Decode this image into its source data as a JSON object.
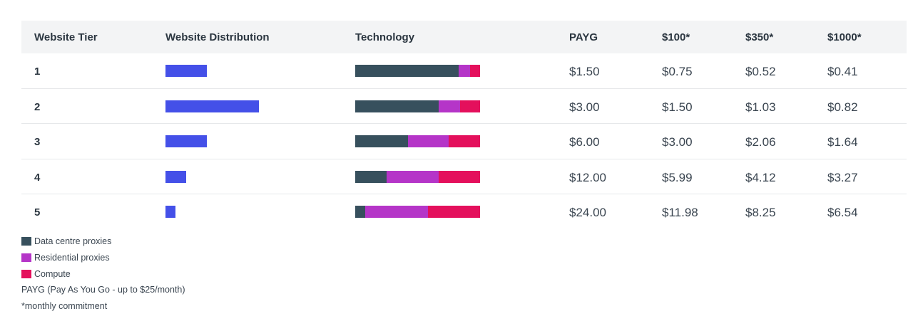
{
  "header": {
    "tier": "Website Tier",
    "distribution": "Website Distribution",
    "technology": "Technology",
    "payg": "PAYG",
    "p100": "$100*",
    "p350": "$350*",
    "p1000": "$1000*"
  },
  "colors": {
    "distribution": "#4450e8",
    "datacentre": "#37505d",
    "residential": "#b535c8",
    "compute": "#e4105c",
    "header_bg": "#f3f4f5"
  },
  "distribution_scale_max": 100,
  "rows": [
    {
      "tier": "1",
      "distribution": 44,
      "tech": {
        "datacentre": 83,
        "residential": 9,
        "compute": 8
      },
      "payg": "$1.50",
      "p100": "$0.75",
      "p350": "$0.52",
      "p1000": "$0.41"
    },
    {
      "tier": "2",
      "distribution": 100,
      "tech": {
        "datacentre": 67,
        "residential": 17,
        "compute": 16
      },
      "payg": "$3.00",
      "p100": "$1.50",
      "p350": "$1.03",
      "p1000": "$0.82"
    },
    {
      "tier": "3",
      "distribution": 44,
      "tech": {
        "datacentre": 42,
        "residential": 33,
        "compute": 25
      },
      "payg": "$6.00",
      "p100": "$3.00",
      "p350": "$2.06",
      "p1000": "$1.64"
    },
    {
      "tier": "4",
      "distribution": 22,
      "tech": {
        "datacentre": 25,
        "residential": 42,
        "compute": 33
      },
      "payg": "$12.00",
      "p100": "$5.99",
      "p350": "$4.12",
      "p1000": "$3.27"
    },
    {
      "tier": "5",
      "distribution": 11,
      "tech": {
        "datacentre": 8,
        "residential": 50,
        "compute": 42
      },
      "payg": "$24.00",
      "p100": "$11.98",
      "p350": "$8.25",
      "p1000": "$6.54"
    }
  ],
  "legend": {
    "datacentre": "Data centre proxies",
    "residential": "Residential proxies",
    "compute": "Compute"
  },
  "notes": {
    "payg": "PAYG (Pay As You Go - up to $25/month)",
    "monthly": "*monthly commitment"
  }
}
